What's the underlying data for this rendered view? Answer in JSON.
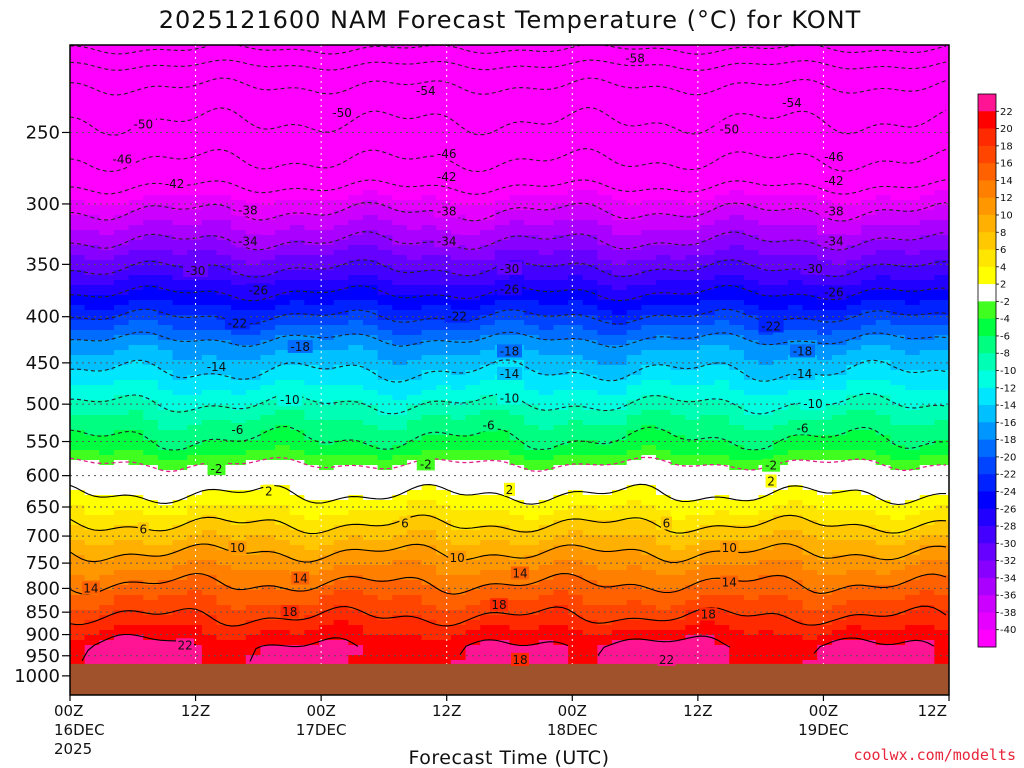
{
  "chart_data": {
    "type": "heatmap",
    "title": "2025121600 NAM Forecast Temperature (°C) for KONT",
    "xlabel": "Forecast Time (UTC)",
    "ylabel": "",
    "credit": "coolwx.com/modelts",
    "x_ticks": [
      {
        "hours": 0,
        "line1": "00Z",
        "line2": "16DEC",
        "line3": "2025"
      },
      {
        "hours": 12,
        "line1": "12Z",
        "line2": "",
        "line3": ""
      },
      {
        "hours": 24,
        "line1": "00Z",
        "line2": "17DEC",
        "line3": ""
      },
      {
        "hours": 36,
        "line1": "12Z",
        "line2": "",
        "line3": ""
      },
      {
        "hours": 48,
        "line1": "00Z",
        "line2": "18DEC",
        "line3": ""
      },
      {
        "hours": 60,
        "line1": "12Z",
        "line2": "",
        "line3": ""
      },
      {
        "hours": 72,
        "line1": "00Z",
        "line2": "19DEC",
        "line3": ""
      },
      {
        "hours": 84,
        "line1": "12Z",
        "line2": "",
        "line3": ""
      }
    ],
    "y_axis": {
      "quantity": "pressure (hPa)",
      "scale": "log",
      "inverted": true,
      "range": [
        1050,
        200
      ]
    },
    "y_ticks": [
      250,
      300,
      350,
      400,
      450,
      500,
      550,
      600,
      650,
      700,
      750,
      800,
      850,
      900,
      950,
      1000
    ],
    "x_range_hours": [
      0,
      84
    ],
    "ground_pressure": 970,
    "grid": "dotted",
    "colorbar": {
      "position": "right",
      "labels": [
        "22",
        "20",
        "18",
        "16",
        "14",
        "12",
        "10",
        "8",
        "6",
        "4",
        "2",
        "-2",
        "-4",
        "-6",
        "-8",
        "-10",
        "-12",
        "-14",
        "-16",
        "-18",
        "-20",
        "-22",
        "-24",
        "-26",
        "-28",
        "-30",
        "-32",
        "-34",
        "-36",
        "-38",
        "-40"
      ],
      "colors": [
        "#ff1493",
        "#ff0000",
        "#ff2a00",
        "#ff4500",
        "#ff6000",
        "#ff7f00",
        "#ff9800",
        "#ffb000",
        "#ffc800",
        "#ffe600",
        "#ffff00",
        "#ffffff",
        "#40ff20",
        "#00ff40",
        "#00ff80",
        "#00ffb4",
        "#00ffe0",
        "#00e6ff",
        "#00c0ff",
        "#0096ff",
        "#006cff",
        "#0044ff",
        "#0022ff",
        "#0000ff",
        "#2200ff",
        "#4400ff",
        "#6600ff",
        "#8800ff",
        "#aa00ff",
        "#cc00ff",
        "#e600ff",
        "#ff00ff"
      ]
    },
    "isotherm_profile_base": [
      {
        "p": 200,
        "t": -63
      },
      {
        "p": 215,
        "t": -56
      },
      {
        "p": 230,
        "t": -52
      },
      {
        "p": 250,
        "t": -49
      },
      {
        "p": 275,
        "t": -45
      },
      {
        "p": 300,
        "t": -39
      },
      {
        "p": 330,
        "t": -34
      },
      {
        "p": 360,
        "t": -29
      },
      {
        "p": 400,
        "t": -22
      },
      {
        "p": 430,
        "t": -17
      },
      {
        "p": 470,
        "t": -13
      },
      {
        "p": 520,
        "t": -8
      },
      {
        "p": 560,
        "t": -5
      },
      {
        "p": 590,
        "t": -1
      },
      {
        "p": 630,
        "t": 2
      },
      {
        "p": 680,
        "t": 6
      },
      {
        "p": 730,
        "t": 10
      },
      {
        "p": 790,
        "t": 14
      },
      {
        "p": 860,
        "t": 18
      },
      {
        "p": 930,
        "t": 22
      },
      {
        "p": 970,
        "t": 22
      }
    ],
    "contour_labels": [
      {
        "v": -58,
        "text": "-58",
        "h": 54,
        "p": 207
      },
      {
        "v": -54,
        "text": "-54",
        "h": 34,
        "p": 225
      },
      {
        "v": -54,
        "text": "-54",
        "h": 69,
        "p": 232
      },
      {
        "v": -50,
        "text": "-50",
        "h": 7,
        "p": 245
      },
      {
        "v": -50,
        "text": "-50",
        "h": 26,
        "p": 238
      },
      {
        "v": -50,
        "text": "-50",
        "h": 63,
        "p": 248
      },
      {
        "v": -46,
        "text": "-46",
        "h": 5,
        "p": 268
      },
      {
        "v": -46,
        "text": "-46",
        "h": 36,
        "p": 264
      },
      {
        "v": -46,
        "text": "-46",
        "h": 73,
        "p": 266
      },
      {
        "v": -42,
        "text": "-42",
        "h": 10,
        "p": 285
      },
      {
        "v": -42,
        "text": "-42",
        "h": 36,
        "p": 280
      },
      {
        "v": -42,
        "text": "-42",
        "h": 73,
        "p": 283
      },
      {
        "v": -38,
        "text": "-38",
        "h": 17,
        "p": 305
      },
      {
        "v": -38,
        "text": "-38",
        "h": 36,
        "p": 306
      },
      {
        "v": -38,
        "text": "-38",
        "h": 73,
        "p": 306
      },
      {
        "v": -34,
        "text": "-34",
        "h": 17,
        "p": 330
      },
      {
        "v": -34,
        "text": "-34",
        "h": 36,
        "p": 330
      },
      {
        "v": -34,
        "text": "-34",
        "h": 73,
        "p": 330
      },
      {
        "v": -30,
        "text": "-30",
        "h": 12,
        "p": 356
      },
      {
        "v": -30,
        "text": "-30",
        "h": 42,
        "p": 354
      },
      {
        "v": -30,
        "text": "-30",
        "h": 71,
        "p": 354
      },
      {
        "v": -26,
        "text": "-26",
        "h": 18,
        "p": 374
      },
      {
        "v": -26,
        "text": "-26",
        "h": 42,
        "p": 373
      },
      {
        "v": -26,
        "text": "-26",
        "h": 73,
        "p": 376
      },
      {
        "v": -22,
        "text": "-22",
        "h": 16,
        "p": 407
      },
      {
        "v": -22,
        "text": "-22",
        "h": 37,
        "p": 400
      },
      {
        "v": -22,
        "text": "-22",
        "h": 67,
        "p": 410
      },
      {
        "v": -18,
        "text": "-18",
        "h": 22,
        "p": 432
      },
      {
        "v": -18,
        "text": "-18",
        "h": 42,
        "p": 437
      },
      {
        "v": -18,
        "text": "-18",
        "h": 70,
        "p": 437
      },
      {
        "v": -14,
        "text": "-14",
        "h": 14,
        "p": 455
      },
      {
        "v": -14,
        "text": "-14",
        "h": 42,
        "p": 463
      },
      {
        "v": -14,
        "text": "-14",
        "h": 70,
        "p": 463
      },
      {
        "v": -10,
        "text": "-10",
        "h": 21,
        "p": 495
      },
      {
        "v": -10,
        "text": "-10",
        "h": 42,
        "p": 493
      },
      {
        "v": -10,
        "text": "-10",
        "h": 71,
        "p": 500
      },
      {
        "v": -6,
        "text": "-6",
        "h": 16,
        "p": 534
      },
      {
        "v": -6,
        "text": "-6",
        "h": 40,
        "p": 528
      },
      {
        "v": -6,
        "text": "-6",
        "h": 70,
        "p": 532
      },
      {
        "v": -2,
        "text": "-2",
        "h": 14,
        "p": 590
      },
      {
        "v": -2,
        "text": "-2",
        "h": 34,
        "p": 583
      },
      {
        "v": -2,
        "text": "-2",
        "h": 67,
        "p": 585
      },
      {
        "v": 2,
        "text": "2",
        "h": 19,
        "p": 625
      },
      {
        "v": 2,
        "text": "2",
        "h": 42,
        "p": 622
      },
      {
        "v": 2,
        "text": "2",
        "h": 67,
        "p": 609
      },
      {
        "v": 6,
        "text": "6",
        "h": 7,
        "p": 688
      },
      {
        "v": 6,
        "text": "6",
        "h": 32,
        "p": 678
      },
      {
        "v": 6,
        "text": "6",
        "h": 57,
        "p": 678
      },
      {
        "v": 10,
        "text": "10",
        "h": 16,
        "p": 722
      },
      {
        "v": 10,
        "text": "10",
        "h": 37,
        "p": 740
      },
      {
        "v": 10,
        "text": "10",
        "h": 63,
        "p": 722
      },
      {
        "v": 14,
        "text": "14",
        "h": 2,
        "p": 800
      },
      {
        "v": 14,
        "text": "14",
        "h": 22,
        "p": 780
      },
      {
        "v": 14,
        "text": "14",
        "h": 43,
        "p": 770
      },
      {
        "v": 14,
        "text": "14",
        "h": 63,
        "p": 788
      },
      {
        "v": 18,
        "text": "18",
        "h": 21,
        "p": 850
      },
      {
        "v": 18,
        "text": "18",
        "h": 41,
        "p": 835
      },
      {
        "v": 18,
        "text": "18",
        "h": 61,
        "p": 855
      },
      {
        "v": 18,
        "text": "18",
        "h": 43,
        "p": 960
      },
      {
        "v": 22,
        "text": "22",
        "h": 11,
        "p": 925
      },
      {
        "v": 22,
        "text": "22",
        "h": 57,
        "p": 960
      }
    ]
  }
}
